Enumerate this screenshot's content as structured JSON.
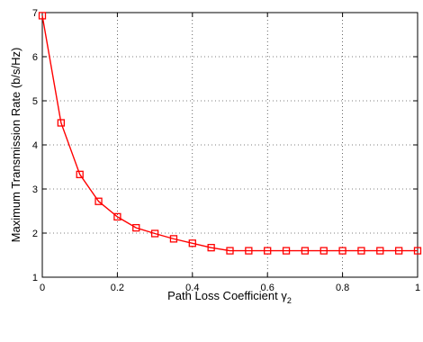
{
  "chart_data": {
    "type": "line",
    "xlabel": "Path Loss Coefficient γ",
    "xlabel_subscript": "2",
    "ylabel": "Maximum Transmission Rate (b/s/Hz)",
    "xlim": [
      0,
      1
    ],
    "ylim": [
      1,
      7
    ],
    "xticks": [
      "0",
      "0.2",
      "0.4",
      "0.6",
      "0.8",
      "1"
    ],
    "xtick_values": [
      0,
      0.2,
      0.4,
      0.6,
      0.8,
      1
    ],
    "yticks": [
      "1",
      "2",
      "3",
      "4",
      "5",
      "6",
      "7"
    ],
    "ytick_values": [
      1,
      2,
      3,
      4,
      5,
      6,
      7
    ],
    "grid": true,
    "grid_style": "dotted",
    "series": [
      {
        "color": "#ff0000",
        "marker": "square",
        "x": [
          0,
          0.05,
          0.1,
          0.15,
          0.2,
          0.25,
          0.3,
          0.35,
          0.4,
          0.45,
          0.5,
          0.55,
          0.6,
          0.65,
          0.7,
          0.75,
          0.8,
          0.85,
          0.9,
          0.95,
          1.0
        ],
        "y": [
          6.93,
          4.5,
          3.33,
          2.72,
          2.37,
          2.12,
          1.99,
          1.87,
          1.77,
          1.67,
          1.6,
          1.6,
          1.6,
          1.6,
          1.6,
          1.6,
          1.6,
          1.6,
          1.6,
          1.6,
          1.6
        ]
      }
    ]
  }
}
